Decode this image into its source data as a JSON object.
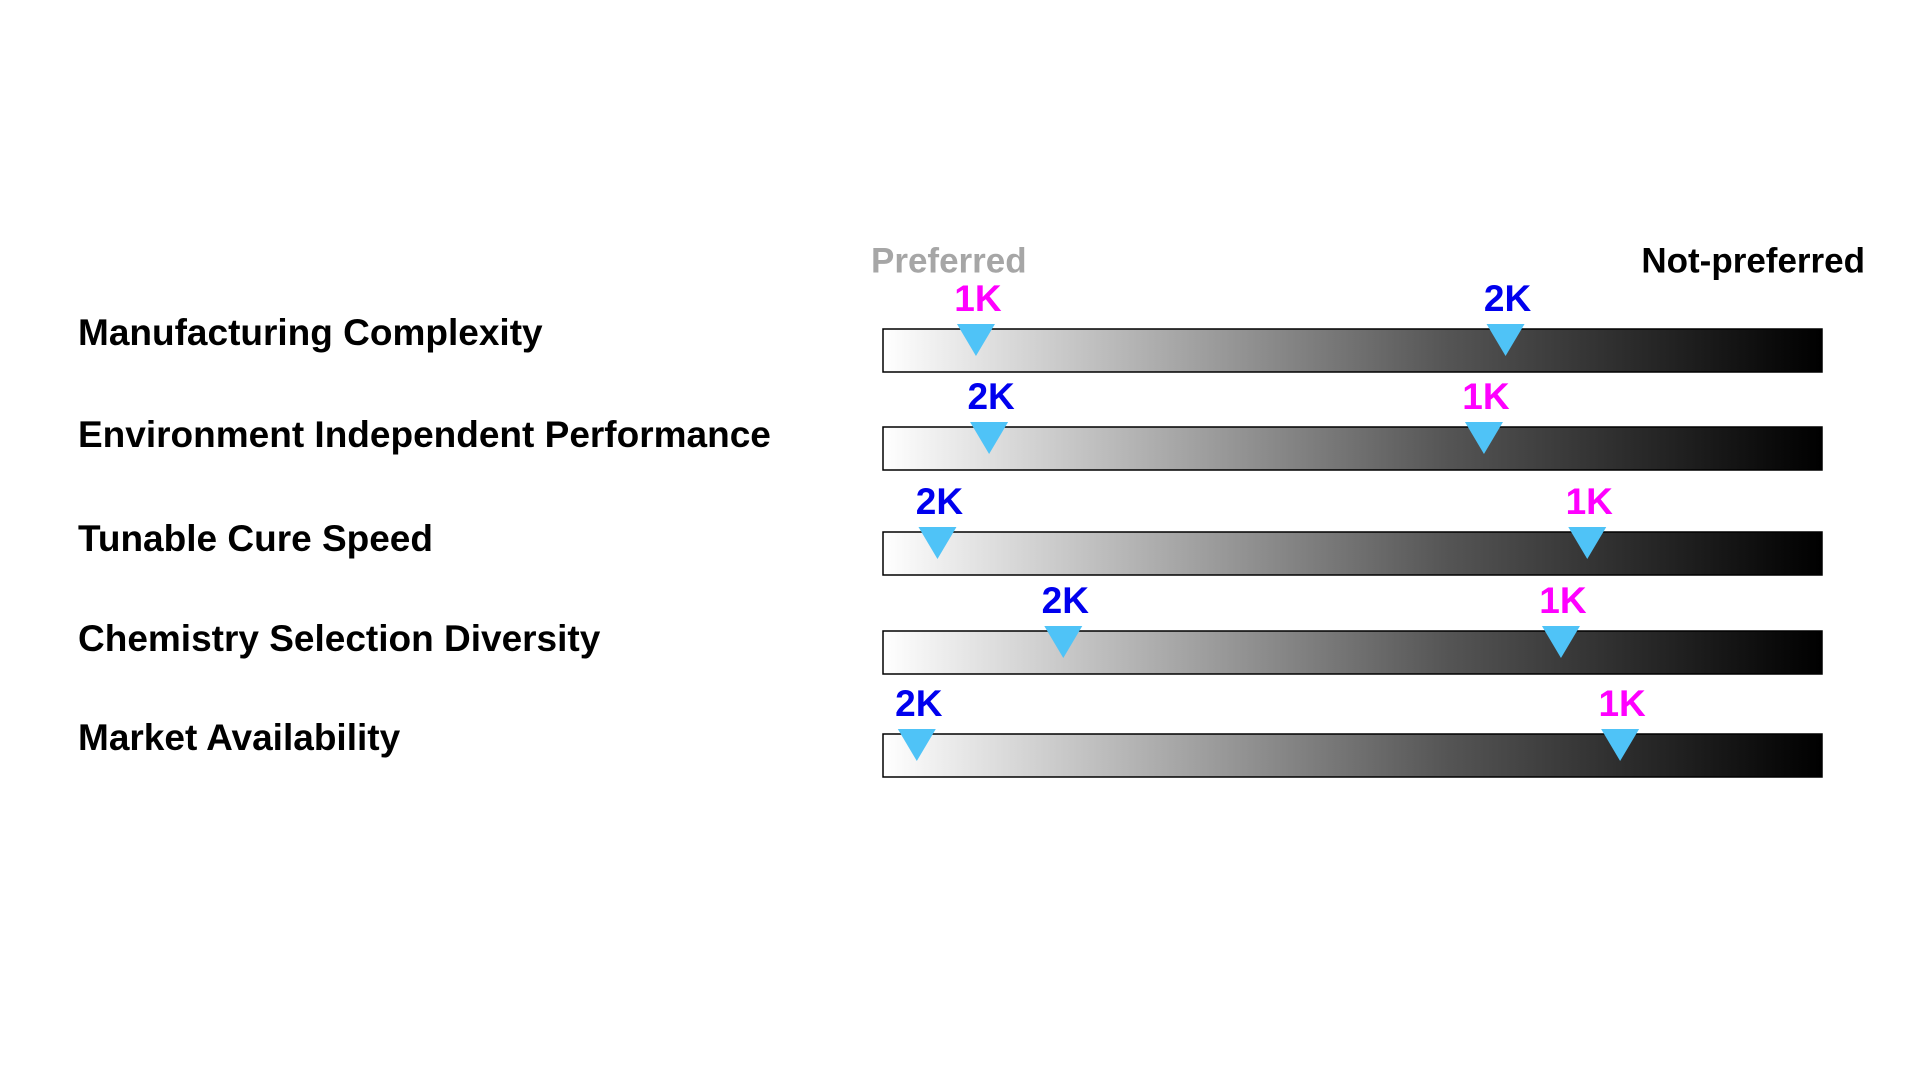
{
  "header": {
    "preferred": "Preferred",
    "not_preferred": "Not-preferred"
  },
  "rows": [
    {
      "label": "Manufacturing Complexity",
      "markers": [
        {
          "label": "1K",
          "color": "#ff00ff"
        },
        {
          "label": "2K",
          "color": "#0000ee"
        }
      ]
    },
    {
      "label": "Environment Independent Performance",
      "markers": [
        {
          "label": "2K",
          "color": "#0000ee"
        },
        {
          "label": "1K",
          "color": "#ff00ff"
        }
      ]
    },
    {
      "label": "Tunable Cure Speed",
      "markers": [
        {
          "label": "2K",
          "color": "#0000ee"
        },
        {
          "label": "1K",
          "color": "#ff00ff"
        }
      ]
    },
    {
      "label": "Chemistry Selection Diversity",
      "markers": [
        {
          "label": "2K",
          "color": "#0000ee"
        },
        {
          "label": "1K",
          "color": "#ff00ff"
        }
      ]
    },
    {
      "label": "Market Availability",
      "markers": [
        {
          "label": "2K",
          "color": "#0000ee"
        },
        {
          "label": "1K",
          "color": "#ff00ff"
        }
      ]
    }
  ]
}
